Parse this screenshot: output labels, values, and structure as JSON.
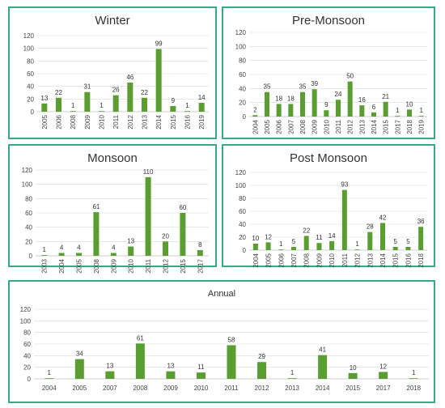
{
  "colors": {
    "bar": "#5a9e32",
    "frame": "#3aa882"
  },
  "chart_data": [
    {
      "type": "bar",
      "title": "Winter",
      "categories": [
        "2005",
        "2006",
        "2008",
        "2009",
        "2010",
        "2011",
        "2012",
        "2013",
        "2014",
        "2015",
        "2016",
        "2019"
      ],
      "values": [
        13,
        22,
        1,
        31,
        1,
        26,
        46,
        22,
        99,
        9,
        1,
        14
      ],
      "ylim": [
        0,
        120
      ],
      "yticks": [
        0,
        20,
        40,
        60,
        80,
        100,
        120
      ],
      "grid": true,
      "legend": "none"
    },
    {
      "type": "bar",
      "title": "Pre-Monsoon",
      "categories": [
        "2004",
        "2005",
        "2006",
        "2007",
        "2008",
        "2009",
        "2010",
        "2011",
        "2012",
        "2013",
        "2014",
        "2015",
        "2017",
        "2018",
        "2019"
      ],
      "values": [
        2,
        35,
        18,
        18,
        35,
        39,
        9,
        24,
        50,
        16,
        6,
        21,
        1,
        10,
        1
      ],
      "ylim": [
        0,
        120
      ],
      "yticks": [
        0,
        20,
        40,
        60,
        80,
        100,
        120
      ],
      "grid": true,
      "legend": "none"
    },
    {
      "type": "bar",
      "title": "Monsoon",
      "categories": [
        "2003",
        "2004",
        "2005",
        "2008",
        "2009",
        "2010",
        "2011",
        "2012",
        "2015",
        "2017"
      ],
      "values": [
        1,
        4,
        4,
        61,
        4,
        13,
        110,
        20,
        60,
        8
      ],
      "ylim": [
        0,
        120
      ],
      "yticks": [
        0,
        20,
        40,
        60,
        80,
        100,
        120
      ],
      "grid": true,
      "legend": "none"
    },
    {
      "type": "bar",
      "title": "Post Monsoon",
      "categories": [
        "2004",
        "2005",
        "2006",
        "2007",
        "2008",
        "2009",
        "2010",
        "2011",
        "2012",
        "2013",
        "2014",
        "2015",
        "2016",
        "2018"
      ],
      "values": [
        10,
        12,
        1,
        5,
        22,
        11,
        14,
        93,
        1,
        28,
        42,
        5,
        5,
        36
      ],
      "ylim": [
        0,
        120
      ],
      "yticks": [
        0,
        20,
        40,
        60,
        80,
        100,
        120
      ],
      "grid": true,
      "legend": "none"
    },
    {
      "type": "bar",
      "title": "Annual",
      "categories": [
        "2004",
        "2005",
        "2007",
        "2008",
        "2009",
        "2010",
        "2011",
        "2012",
        "2013",
        "2014",
        "2015",
        "2017",
        "2018"
      ],
      "values": [
        1,
        34,
        13,
        61,
        13,
        11,
        58,
        29,
        1,
        41,
        10,
        12,
        1
      ],
      "ylim": [
        0,
        120
      ],
      "yticks": [
        0,
        20,
        40,
        60,
        80,
        100,
        120
      ],
      "grid": true,
      "legend": "none"
    }
  ]
}
